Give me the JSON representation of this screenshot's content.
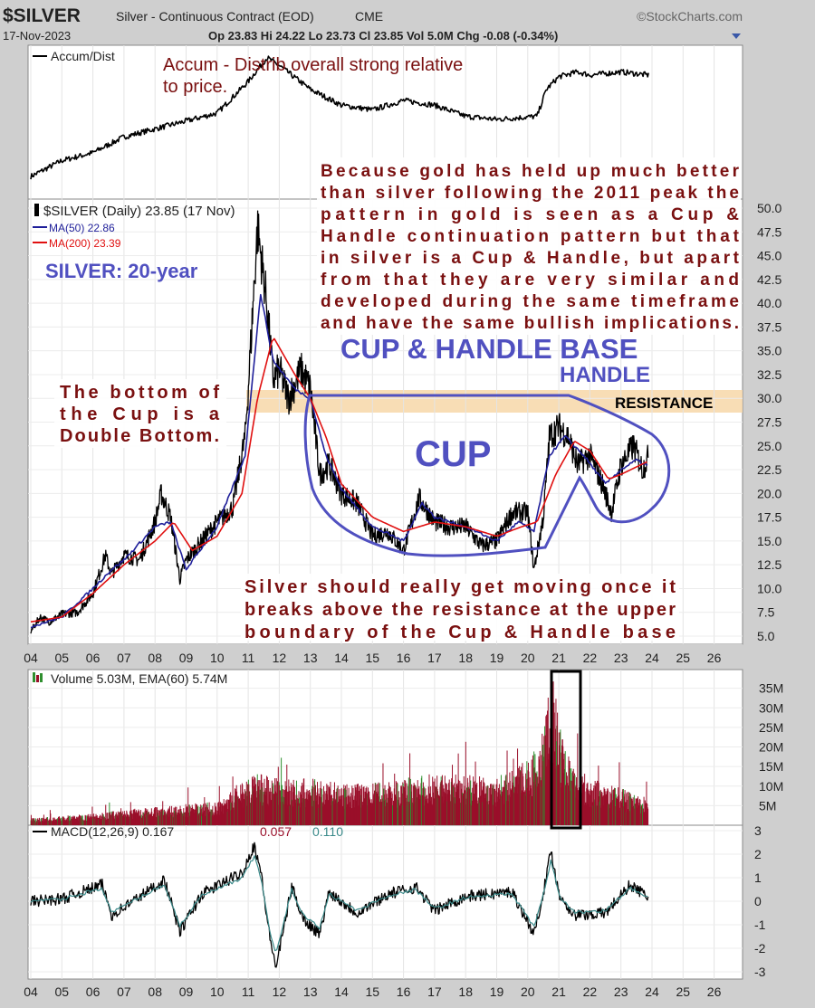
{
  "header": {
    "symbol": "$SILVER",
    "description": "Silver - Continuous Contract (EOD)",
    "exchange": "CME",
    "brand": "©StockCharts.com",
    "date": "17-Nov-2023",
    "quote": "Op 23.83  Hi 24.22  Lo 23.73  Cl 23.85  Vol 5.0M  Chg -0.08 (-0.34%)"
  },
  "colors": {
    "price": "#000000",
    "ma50": "#1f1f9a",
    "ma200": "#e01010",
    "volume": "#9a0f2a",
    "volume_up": "#2f8f2f",
    "annotation_red": "#7a1010",
    "annotation_blue": "#5050c0",
    "resistance_band": "#f7d7a8",
    "panel_bg": "#ffffff",
    "background": "#cfcfcf"
  },
  "annotations": {
    "accum_note": [
      "Accum - Distrib overall strong relative",
      "to price."
    ],
    "gold_note": [
      "Because gold has held up much better",
      "than silver following the 2011 peak the",
      "pattern in gold is seen as a Cup &",
      "Handle continuation pattern but that",
      "in silver is a Cup & Handle, but apart",
      "from that they are very similar and",
      "developed during the same timeframe",
      "and have the same bullish implications."
    ],
    "silver_20yr": "SILVER: 20-year",
    "cup_handle_base": "CUP & HANDLE BASE",
    "handle": "HANDLE",
    "resistance": "RESISTANCE",
    "cup": "CUP",
    "double_bottom": [
      "The bottom of",
      "the Cup is a",
      "Double Bottom."
    ],
    "breakout_note": [
      "Silver should really get moving once it",
      "breaks above the resistance at the upper",
      "boundary of the Cup & Handle base"
    ]
  },
  "chart_data": [
    {
      "type": "line",
      "panel": "accumulation-distribution",
      "legend": [
        "Accum/Dist"
      ],
      "x": [
        2004,
        2005,
        2006,
        2007,
        2008,
        2009,
        2010,
        2011,
        2011.6,
        2012,
        2013,
        2014,
        2015,
        2016,
        2017,
        2018,
        2019,
        2020.3,
        2020.6,
        2021,
        2021.6,
        2022,
        2023,
        2023.9
      ],
      "y": [
        0,
        1,
        1.5,
        2.5,
        3,
        3.5,
        4,
        6,
        7.5,
        7,
        5.5,
        4.5,
        4.2,
        4.8,
        4.5,
        3.8,
        3.6,
        3.8,
        5.5,
        6.3,
        6.6,
        6.4,
        6.6,
        6.4
      ]
    },
    {
      "type": "line",
      "panel": "price",
      "title": "$SILVER (Daily) 23.85 (17 Nov)",
      "legend": [
        "$SILVER (Daily) 23.85 (17 Nov)",
        "MA(50) 22.86",
        "MA(200) 23.39"
      ],
      "x_ticks": [
        "04",
        "05",
        "06",
        "07",
        "08",
        "09",
        "10",
        "11",
        "12",
        "13",
        "14",
        "15",
        "16",
        "17",
        "18",
        "19",
        "20",
        "21",
        "22",
        "23",
        "24",
        "25",
        "26"
      ],
      "y_ticks": [
        "5.0",
        "7.5",
        "10.0",
        "12.5",
        "15.0",
        "17.5",
        "20.0",
        "22.5",
        "25.0",
        "27.5",
        "30.0",
        "32.5",
        "35.0",
        "37.5",
        "40.0",
        "42.5",
        "45.0",
        "47.5",
        "50.0"
      ],
      "ylim": [
        5,
        50
      ],
      "resistance_band": [
        28,
        31
      ],
      "series": [
        {
          "name": "$SILVER",
          "x": [
            2004,
            2004.3,
            2004.6,
            2005,
            2005.5,
            2006,
            2006.4,
            2006.6,
            2007,
            2007.5,
            2008,
            2008.2,
            2008.5,
            2008.8,
            2009,
            2009.5,
            2010,
            2010.5,
            2010.9,
            2011,
            2011.3,
            2011.6,
            2011.8,
            2012,
            2012.3,
            2012.7,
            2013,
            2013.3,
            2013.6,
            2014,
            2014.5,
            2015,
            2015.5,
            2016,
            2016.5,
            2017,
            2017.5,
            2018,
            2018.5,
            2019,
            2019.5,
            2020,
            2020.2,
            2020.5,
            2020.7,
            2021,
            2021.3,
            2021.6,
            2022,
            2022.4,
            2022.7,
            2023,
            2023.4,
            2023.7,
            2023.88
          ],
          "values": [
            5.5,
            7,
            6.5,
            7.3,
            7.5,
            9.5,
            13.5,
            11.5,
            13.5,
            13,
            17,
            20,
            17.5,
            11,
            13,
            15,
            17,
            18.5,
            26,
            31,
            48,
            40,
            32,
            33,
            30,
            33,
            31,
            22,
            23,
            20,
            19,
            15.5,
            16,
            14,
            19.5,
            17,
            16.5,
            16.5,
            14.5,
            15,
            18,
            18,
            12,
            17.5,
            26,
            27,
            26,
            23,
            24,
            21,
            18,
            23,
            25,
            22.5,
            23.85
          ]
        },
        {
          "name": "MA(50)",
          "x": [
            2004,
            2005,
            2006,
            2006.6,
            2007,
            2008,
            2008.5,
            2009,
            2010,
            2010.9,
            2011.4,
            2011.8,
            2012.5,
            2013,
            2013.5,
            2014,
            2015,
            2016,
            2016.6,
            2017,
            2018,
            2019,
            2019.7,
            2020.2,
            2020.7,
            2021.2,
            2021.8,
            2022.5,
            2023,
            2023.5,
            2023.88
          ],
          "values": [
            6,
            7,
            10,
            12,
            13,
            16.5,
            17,
            12,
            16.5,
            24,
            41,
            34,
            31,
            30,
            24,
            20.5,
            16.5,
            15,
            19,
            17.5,
            16.5,
            15,
            17,
            16,
            24,
            26,
            24,
            21,
            22.5,
            23.5,
            22.86
          ]
        },
        {
          "name": "MA(200)",
          "x": [
            2004,
            2005,
            2006,
            2007,
            2008,
            2008.6,
            2009.2,
            2010,
            2010.8,
            2011.3,
            2011.8,
            2012.5,
            2013,
            2013.5,
            2014,
            2015,
            2016,
            2017,
            2018,
            2019,
            2019.8,
            2020.3,
            2020.9,
            2021.5,
            2022,
            2022.6,
            2023,
            2023.88
          ],
          "values": [
            6.5,
            7,
            9.5,
            12.5,
            15,
            17,
            14,
            15.5,
            20,
            30,
            36.5,
            32.5,
            30,
            26,
            21,
            17.5,
            16,
            17,
            16.5,
            15.5,
            16.5,
            17,
            22,
            25.5,
            24.5,
            21.5,
            22,
            23.39
          ]
        }
      ]
    },
    {
      "type": "bar",
      "panel": "volume",
      "title": "Volume 5.03M, EMA(60) 5.74M",
      "legend": [
        "Volume 5.03M, EMA(60) 5.74M"
      ],
      "y_ticks": [
        "5M",
        "10M",
        "15M",
        "20M",
        "25M",
        "30M",
        "35M"
      ],
      "ylim": [
        0,
        37
      ],
      "x": [
        2004,
        2006,
        2008,
        2010,
        2010.8,
        2011.3,
        2012,
        2013,
        2014,
        2015,
        2016,
        2017,
        2018,
        2019,
        2020,
        2020.5,
        2020.8,
        2021,
        2021.5,
        2022,
        2023,
        2023.88
      ],
      "values": [
        1.5,
        2.5,
        4,
        5,
        9,
        11,
        10,
        10,
        9,
        9,
        10,
        11,
        11,
        10,
        14,
        20,
        34,
        22,
        12,
        10,
        8,
        5.03
      ],
      "ema": [
        1.5,
        2.5,
        4,
        5,
        7,
        9,
        9,
        9,
        8.5,
        8.5,
        9.5,
        10,
        10,
        9.5,
        12,
        15,
        20,
        16,
        11,
        9.5,
        7.5,
        5.74
      ]
    },
    {
      "type": "line",
      "panel": "macd",
      "title": "MACD(12,26,9) 0.167, 0.057, 0.110",
      "legend": [
        "MACD(12,26,9) 0.167",
        "0.057",
        "0.110"
      ],
      "x_ticks": [
        "04",
        "05",
        "06",
        "07",
        "08",
        "09",
        "10",
        "11",
        "12",
        "13",
        "14",
        "15",
        "16",
        "17",
        "18",
        "19",
        "20",
        "21",
        "22",
        "23",
        "24",
        "25",
        "26"
      ],
      "y_ticks": [
        "3",
        "2",
        "1",
        "0",
        "-1",
        "-2",
        "-3"
      ],
      "ylim": [
        -3,
        3
      ],
      "x": [
        2004,
        2005,
        2006.3,
        2006.6,
        2008.3,
        2008.8,
        2009.5,
        2010.8,
        2011.2,
        2011.4,
        2011.7,
        2011.9,
        2012.4,
        2012.8,
        2013.3,
        2013.6,
        2014.5,
        2015.5,
        2016.4,
        2017,
        2018,
        2019.5,
        2020.2,
        2020.6,
        2020.75,
        2021,
        2021.5,
        2022.5,
        2023.3,
        2023.88
      ],
      "values": [
        0,
        0.1,
        0.7,
        -0.6,
        0.9,
        -1.3,
        0.3,
        1.2,
        2.4,
        1.3,
        -1.6,
        -2.8,
        0.6,
        -0.8,
        -1.4,
        0.4,
        -0.5,
        0.3,
        0.6,
        -0.4,
        0.2,
        0.4,
        -1.4,
        1,
        2.2,
        0.3,
        -0.6,
        -0.5,
        0.7,
        0.167
      ]
    }
  ]
}
